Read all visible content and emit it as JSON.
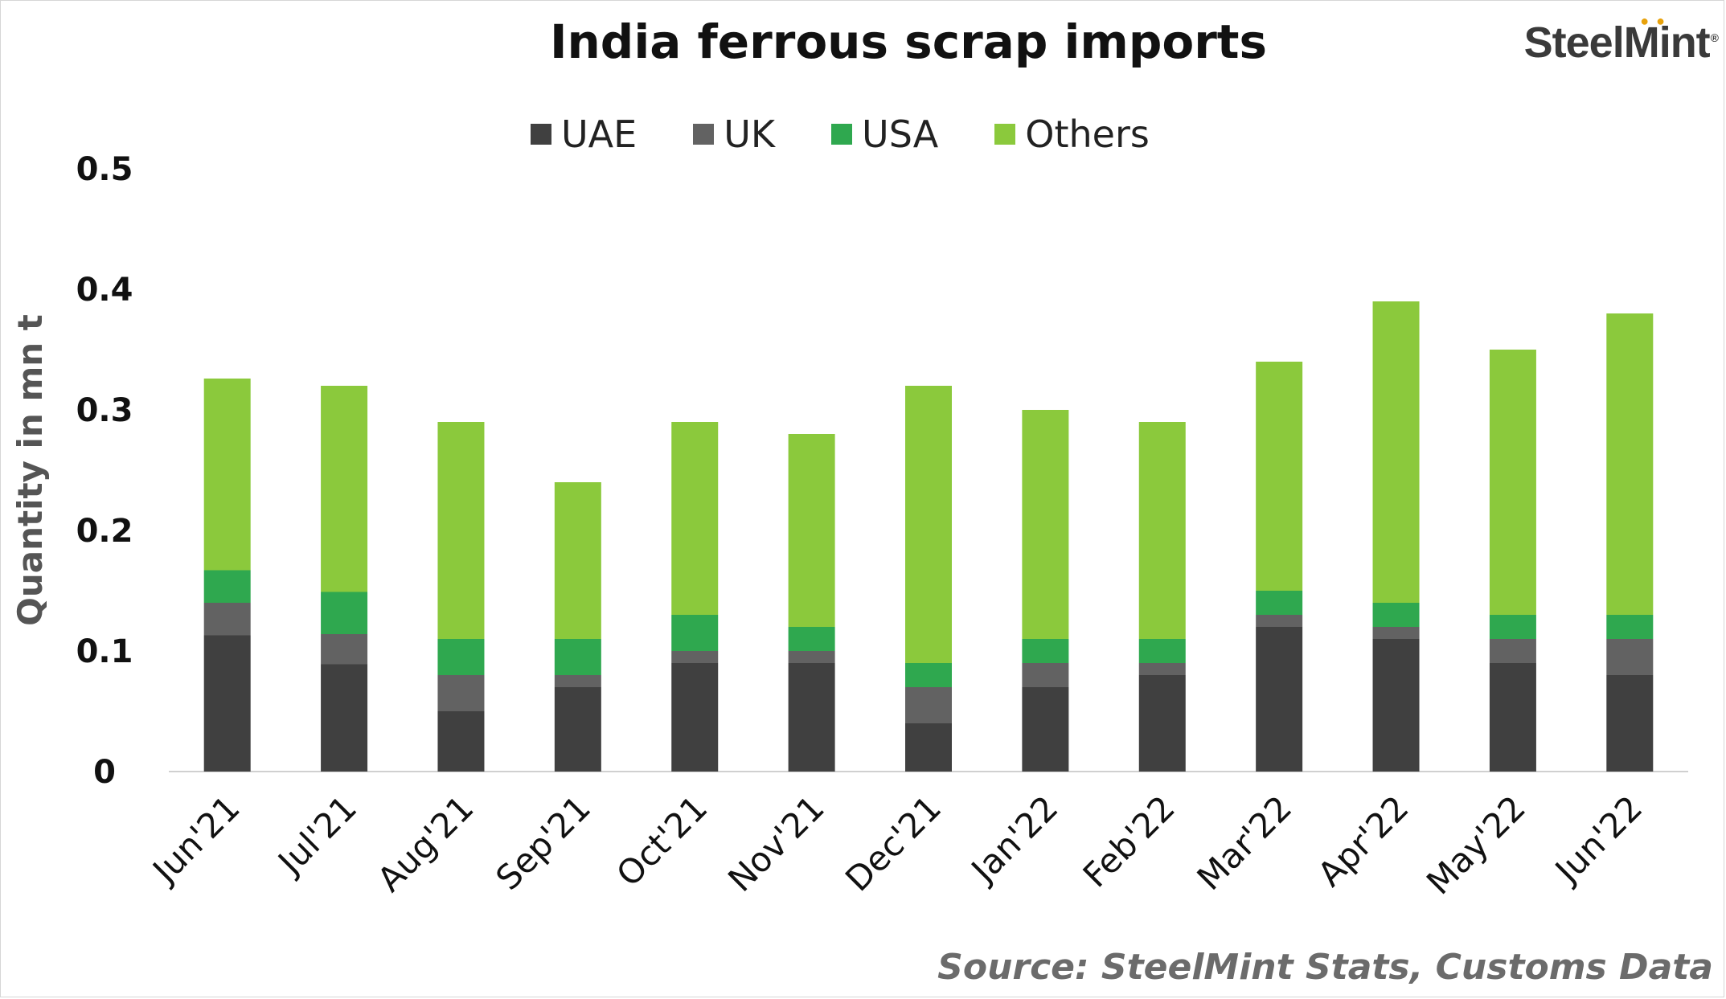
{
  "chart_data": {
    "type": "bar",
    "stacked": true,
    "title": "India ferrous scrap imports",
    "ylabel": "Quantity in mn t",
    "xlabel": "",
    "ylim": [
      0,
      0.5
    ],
    "yticks": [
      "0",
      "0.1",
      "0.2",
      "0.3",
      "0.4",
      "0.5"
    ],
    "categories": [
      "Jun'21",
      "Jul'21",
      "Aug'21",
      "Sep'21",
      "Oct'21",
      "Nov'21",
      "Dec'21",
      "Jan'22",
      "Feb'22",
      "Mar'22",
      "Apr'22",
      "May'22",
      "Jun'22"
    ],
    "series": [
      {
        "name": "UAE",
        "color": "#404040",
        "values": [
          0.113,
          0.089,
          0.05,
          0.07,
          0.09,
          0.09,
          0.04,
          0.07,
          0.08,
          0.12,
          0.11,
          0.09,
          0.08
        ]
      },
      {
        "name": "UK",
        "color": "#626262",
        "values": [
          0.027,
          0.025,
          0.03,
          0.01,
          0.01,
          0.01,
          0.03,
          0.02,
          0.01,
          0.01,
          0.01,
          0.02,
          0.03
        ]
      },
      {
        "name": "USA",
        "color": "#2fa84f",
        "values": [
          0.027,
          0.035,
          0.03,
          0.03,
          0.03,
          0.02,
          0.02,
          0.02,
          0.02,
          0.02,
          0.02,
          0.02,
          0.02
        ]
      },
      {
        "name": "Others",
        "color": "#8bc93c",
        "values": [
          0.159,
          0.171,
          0.18,
          0.13,
          0.16,
          0.16,
          0.23,
          0.19,
          0.18,
          0.19,
          0.25,
          0.22,
          0.25
        ]
      }
    ],
    "legend_position": "top-center",
    "grid": false
  },
  "source": "Source: SteelMint Stats, Customs Data",
  "logo": {
    "text": "SteelMint",
    "reg": "®"
  }
}
